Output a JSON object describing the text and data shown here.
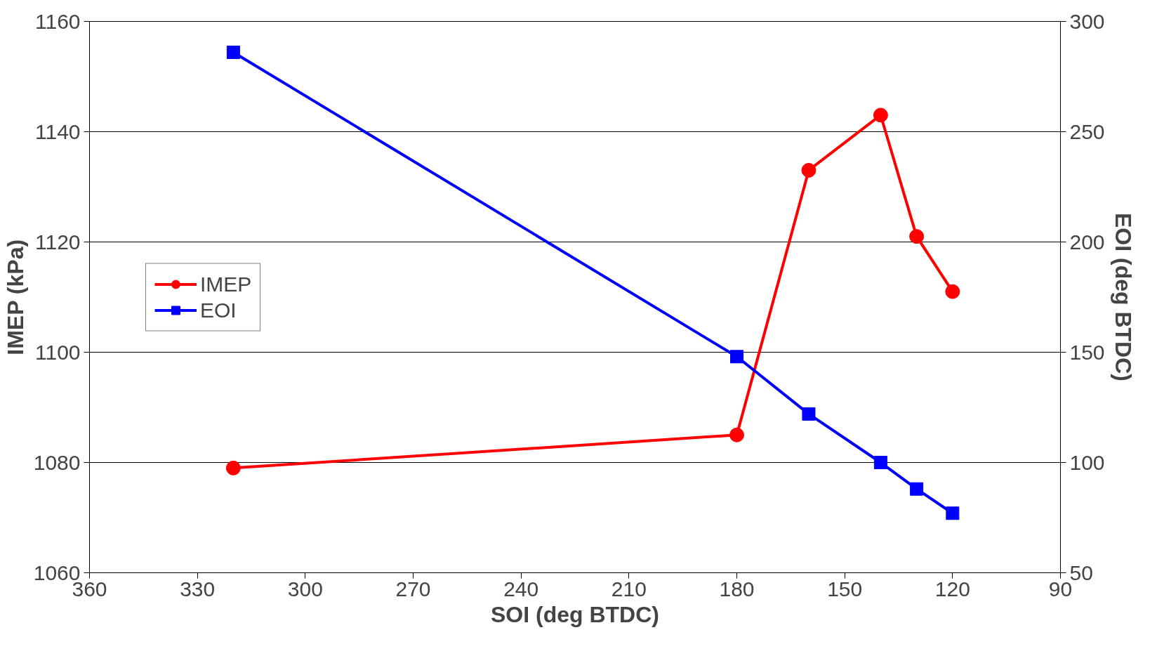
{
  "chart_data": {
    "type": "line",
    "xlabel": "SOI (deg BTDC)",
    "ylabel": "IMEP (kPa)",
    "y2label": "EOI (deg BTDC)",
    "xlim": [
      360,
      90
    ],
    "xticks": [
      360,
      330,
      300,
      270,
      240,
      210,
      180,
      150,
      120,
      90
    ],
    "ylim": [
      1060,
      1160
    ],
    "yticks": [
      1060,
      1080,
      1100,
      1120,
      1140,
      1160
    ],
    "y2lim": [
      50,
      300
    ],
    "y2ticks": [
      50,
      100,
      150,
      200,
      250,
      300
    ],
    "grid": "y",
    "legend": "left",
    "line_style": "solid",
    "series": [
      {
        "name": "IMEP",
        "color": "#ff0000",
        "marker": "circle",
        "x": [
          320,
          180,
          160,
          140,
          130,
          120
        ],
        "values": [
          1079,
          1085,
          1133,
          1143,
          1121,
          1111
        ]
      },
      {
        "name": "EOI",
        "color": "#0000ff",
        "marker": "square",
        "axis": "y2",
        "x": [
          320,
          180,
          160,
          140,
          130,
          120
        ],
        "values": [
          286,
          148,
          122,
          100,
          88,
          77
        ]
      }
    ]
  }
}
